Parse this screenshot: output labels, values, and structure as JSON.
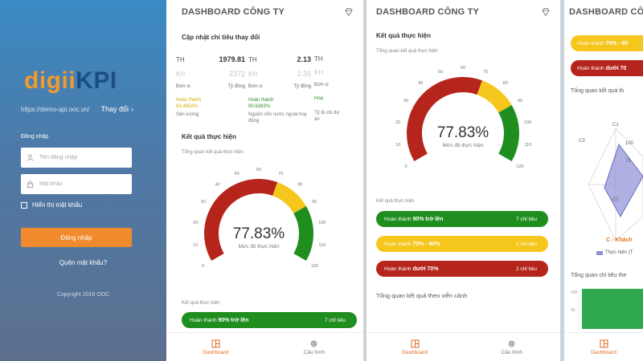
{
  "login": {
    "logo_prefix": "digii",
    "logo_suffix": "KPI",
    "server_url": "https://demo-api.ooc.vn/",
    "change_label": "Thay đổi",
    "login_section": "Đăng nhập",
    "username_placeholder": "Tên đăng nhập",
    "password_placeholder": "Mật khẩu",
    "show_password": "Hiển thị mật khẩu",
    "login_button": "Đăng nhập",
    "forgot_password": "Quên mật khẩu?",
    "copyright": "Copyright 2018 OOC"
  },
  "dashboard_title": "DASHBOARD CÔNG TY",
  "panel1": {
    "update_title": "Cập nhật chỉ tiêu thay đổi",
    "kpis": [
      {
        "th_label": "TH",
        "th_value": "1979.81",
        "kh_label": "KH",
        "kh_value": "2372",
        "unit_label": "Đơn vị",
        "unit_value": "Tỷ đồng",
        "done_label": "Hoàn thành",
        "done_pct": "83.4658%",
        "name": "Sản lượng"
      },
      {
        "th_label": "TH",
        "th_value": "2.13",
        "kh_label": "KH",
        "kh_value": "2.35",
        "unit_label": "Đơn vị",
        "unit_value": "Tỷ đồng",
        "done_label": "Hoàn thành",
        "done_pct": "90.6383%",
        "name": "Nguồn vốn nước ngoài huy động"
      },
      {
        "th_label": "TH",
        "th_value": "",
        "kh_label": "KH",
        "kh_value": "",
        "unit_label": "Đơn vị",
        "unit_value": "",
        "done_label": "Hoà",
        "done_pct": "",
        "name": "Tỷ lệ chi dự án"
      }
    ],
    "result_title": "Kết quả thực hiện",
    "overview_label": "Tổng quan kết quả thực hiện",
    "gauge_value": "77.83%",
    "gauge_caption": "Mức độ thực hiện",
    "gauge_pct": 77.83,
    "gauge_ticks": [
      "0",
      "10",
      "20",
      "30",
      "40",
      "50",
      "60",
      "70",
      "80",
      "90",
      "100",
      "110",
      "120"
    ],
    "result_label": "Kết quả thực hiện",
    "pill_text": "Hoàn thành",
    "pill_bold": "90%",
    "pill_suffix": "trở lên",
    "pill_count": "7 chỉ tiêu"
  },
  "panel2": {
    "result_title": "Kết quả thực hiện",
    "overview_label": "Tổng quan kết quả thực hiện",
    "gauge_value": "77.83%",
    "gauge_caption": "Mức độ thực hiện",
    "result_label": "Kết quả thực hiện",
    "pills": [
      {
        "text": "Hoàn thành",
        "bold": "90%",
        "suffix": "trở lên",
        "count": "7 chỉ tiêu"
      },
      {
        "text": "Hoàn thành",
        "bold": "70%",
        "suffix": "- 90%",
        "count": "2 chỉ tiêu"
      },
      {
        "text": "Hoàn thành",
        "bold": "dưới",
        "suffix": "70%",
        "count": "2 chỉ tiêu"
      }
    ],
    "vision_title": "Tổng quan kết quả theo viễn cảnh"
  },
  "panel3": {
    "pill_yellow_text": "Hoàn thành",
    "pill_yellow_bold": "70%",
    "pill_yellow_suffix": "- 90",
    "pill_red_text": "Hoàn thành",
    "pill_red_bold": "dưới",
    "pill_red_suffix": "70",
    "vision_label": "Tổng quan kết quả th",
    "radar_labels": [
      "C3",
      "C1",
      "100",
      "C2",
      "75"
    ],
    "radar_caption": "C - Khách",
    "legend": "Thực hiện (T",
    "bottom_title": "Tổng quan chỉ tiêu the",
    "bar_axis": [
      "100",
      "50"
    ]
  },
  "tabs": {
    "dashboard": "Dashboard",
    "config": "Cấu hình"
  },
  "colors": {
    "green": "#1f8e1f",
    "yellow": "#f5c61c",
    "red": "#b5251c",
    "accent": "#f08a2c"
  }
}
